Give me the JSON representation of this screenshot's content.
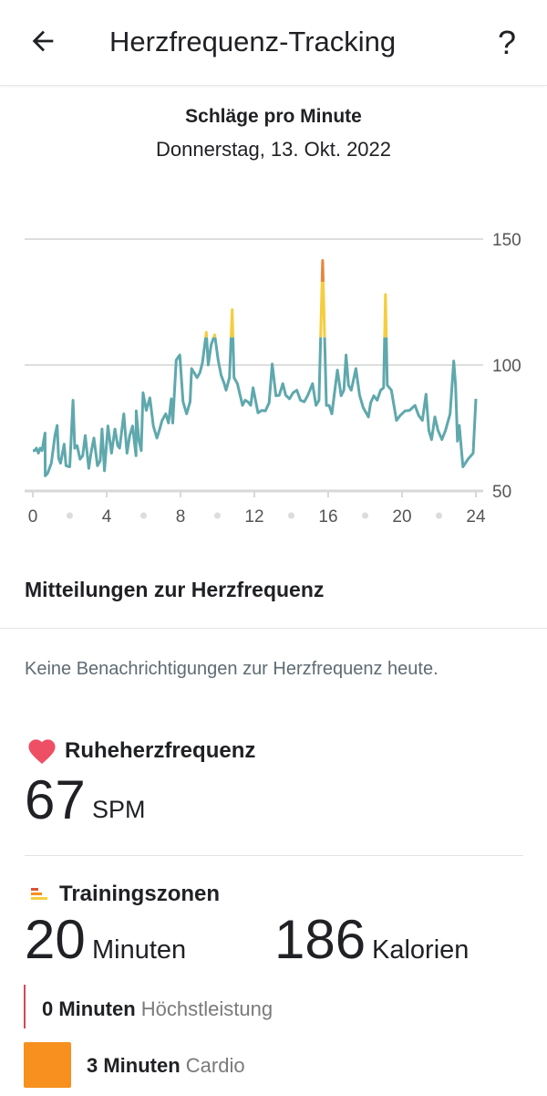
{
  "header": {
    "title": "Herzfrequenz-Tracking",
    "back_icon": "arrow-left-icon",
    "help_icon": "help-icon"
  },
  "chart_header": {
    "subtitle": "Schläge pro Minute",
    "date": "Donnerstag, 13. Okt. 2022"
  },
  "chart_data": {
    "type": "line",
    "title": "Schläge pro Minute",
    "xlabel": "",
    "ylabel": "",
    "xlim": [
      0,
      24
    ],
    "ylim": [
      50,
      150
    ],
    "x_ticks": [
      "0",
      "4",
      "8",
      "12",
      "16",
      "20",
      "24"
    ],
    "y_ticks": [
      "150",
      "100",
      "50"
    ],
    "zone_thresholds": {
      "fat_burn": 111,
      "cardio": 133
    },
    "colors": {
      "normal": "#5fa8ad",
      "fat_burn": "#f5cd3e",
      "cardio": "#e8843a"
    },
    "points": [
      [
        0,
        66
      ],
      [
        0.1,
        66
      ],
      [
        0.2,
        67
      ],
      [
        0.3,
        65
      ],
      [
        0.4,
        67
      ],
      [
        0.5,
        66
      ],
      [
        0.66,
        73
      ],
      [
        0.67,
        56
      ],
      [
        0.8,
        57
      ],
      [
        1.0,
        61
      ],
      [
        1.2,
        72
      ],
      [
        1.32,
        76
      ],
      [
        1.4,
        63
      ],
      [
        1.5,
        61
      ],
      [
        1.7,
        68.6
      ],
      [
        1.8,
        60
      ],
      [
        2.0,
        59.6
      ],
      [
        2.18,
        86
      ],
      [
        2.27,
        67
      ],
      [
        2.4,
        68
      ],
      [
        2.56,
        62.6
      ],
      [
        2.7,
        64
      ],
      [
        2.84,
        72
      ],
      [
        3.03,
        59
      ],
      [
        3.15,
        65
      ],
      [
        3.31,
        71
      ],
      [
        3.5,
        60
      ],
      [
        3.65,
        62
      ],
      [
        3.75,
        74.6
      ],
      [
        3.88,
        58
      ],
      [
        4.07,
        75.8
      ],
      [
        4.26,
        65
      ],
      [
        4.45,
        74.6
      ],
      [
        4.6,
        68
      ],
      [
        4.7,
        67
      ],
      [
        4.93,
        80.6
      ],
      [
        5.1,
        65
      ],
      [
        5.25,
        72
      ],
      [
        5.4,
        75.8
      ],
      [
        5.59,
        64
      ],
      [
        5.6,
        81.8
      ],
      [
        5.75,
        70
      ],
      [
        5.87,
        66
      ],
      [
        5.97,
        89
      ],
      [
        6.15,
        82
      ],
      [
        6.34,
        87
      ],
      [
        6.53,
        75.8
      ],
      [
        6.72,
        71
      ],
      [
        6.85,
        74
      ],
      [
        7.0,
        78
      ],
      [
        7.2,
        80.6
      ],
      [
        7.35,
        77
      ],
      [
        7.5,
        86.6
      ],
      [
        7.58,
        77
      ],
      [
        7.77,
        102
      ],
      [
        7.96,
        104
      ],
      [
        8.14,
        85.4
      ],
      [
        8.33,
        80.6
      ],
      [
        8.52,
        85.4
      ],
      [
        8.6,
        98.6
      ],
      [
        8.9,
        95
      ],
      [
        9.05,
        97
      ],
      [
        9.19,
        101
      ],
      [
        9.4,
        113
      ],
      [
        9.5,
        100
      ],
      [
        9.66,
        108
      ],
      [
        9.85,
        112
      ],
      [
        10.04,
        102
      ],
      [
        10.2,
        96
      ],
      [
        10.35,
        93
      ],
      [
        10.47,
        90
      ],
      [
        10.65,
        95
      ],
      [
        10.8,
        122
      ],
      [
        10.9,
        95
      ],
      [
        11.08,
        92.6
      ],
      [
        11.36,
        84
      ],
      [
        11.5,
        86
      ],
      [
        11.65,
        85.4
      ],
      [
        11.8,
        84
      ],
      [
        11.93,
        91
      ],
      [
        12.2,
        81
      ],
      [
        12.4,
        82
      ],
      [
        12.6,
        81.8
      ],
      [
        12.8,
        85
      ],
      [
        12.97,
        100.4
      ],
      [
        13.17,
        87.8
      ],
      [
        13.35,
        88
      ],
      [
        13.54,
        92.6
      ],
      [
        13.7,
        88
      ],
      [
        13.9,
        86.6
      ],
      [
        14.1,
        89
      ],
      [
        14.3,
        90
      ],
      [
        14.5,
        86
      ],
      [
        14.7,
        85.4
      ],
      [
        14.9,
        88
      ],
      [
        15.15,
        92.6
      ],
      [
        15.34,
        84
      ],
      [
        15.5,
        86
      ],
      [
        15.7,
        141.5
      ],
      [
        15.9,
        84
      ],
      [
        16.05,
        84
      ],
      [
        16.2,
        80.6
      ],
      [
        16.5,
        98
      ],
      [
        16.7,
        87.8
      ],
      [
        16.85,
        90
      ],
      [
        16.97,
        104
      ],
      [
        17.1,
        92
      ],
      [
        17.25,
        90
      ],
      [
        17.5,
        98.6
      ],
      [
        17.7,
        88
      ],
      [
        17.9,
        83
      ],
      [
        18.18,
        79.4
      ],
      [
        18.3,
        85
      ],
      [
        18.47,
        87.8
      ],
      [
        18.65,
        86
      ],
      [
        18.84,
        90
      ],
      [
        19.0,
        91
      ],
      [
        19.1,
        128
      ],
      [
        19.2,
        92
      ],
      [
        19.42,
        90
      ],
      [
        19.7,
        78
      ],
      [
        19.9,
        80
      ],
      [
        20.17,
        81.8
      ],
      [
        20.4,
        82
      ],
      [
        20.7,
        84
      ],
      [
        20.9,
        80
      ],
      [
        21.1,
        78
      ],
      [
        21.3,
        88.4
      ],
      [
        21.45,
        74
      ],
      [
        21.6,
        70.4
      ],
      [
        21.78,
        79.4
      ],
      [
        21.95,
        74
      ],
      [
        22.16,
        70.4
      ],
      [
        22.35,
        74
      ],
      [
        22.6,
        80.6
      ],
      [
        22.8,
        101.6
      ],
      [
        22.9,
        92
      ],
      [
        23.0,
        69.8
      ],
      [
        23.1,
        76
      ],
      [
        23.3,
        59.6
      ],
      [
        23.57,
        62.6
      ],
      [
        23.85,
        65
      ],
      [
        24,
        86.6
      ]
    ]
  },
  "notifications": {
    "title": "Mitteilungen zur Herzfrequenz",
    "empty_text": "Keine Benachrichtigungen zur Herzfrequenz heute."
  },
  "resting": {
    "label": "Ruheherzfrequenz",
    "value": "67",
    "unit": "SPM",
    "icon": "heart-icon",
    "color": "#ef4f64"
  },
  "zones": {
    "label": "Trainingszonen",
    "icon": "zones-icon",
    "minutes": "20",
    "minutes_unit": "Minuten",
    "calories": "186",
    "calories_unit": "Kalorien",
    "items": [
      {
        "value": "0 Minuten",
        "name": "Höchstleistung",
        "color": "#d24a5a"
      },
      {
        "value": "3 Minuten",
        "name": "Cardio",
        "color": "#f7901e"
      }
    ]
  }
}
